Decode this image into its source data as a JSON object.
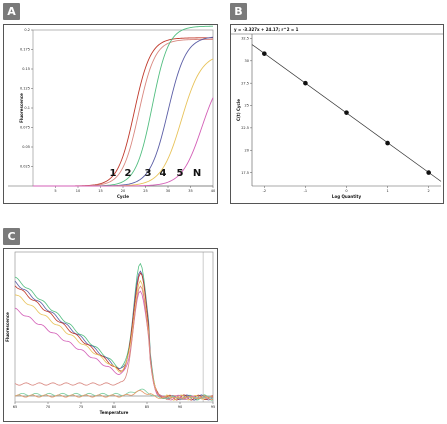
{
  "panels": {
    "a": {
      "label": "A"
    },
    "b": {
      "label": "B"
    },
    "c": {
      "label": "C"
    }
  },
  "chart_data": [
    {
      "id": "A",
      "type": "line",
      "xlabel": "Cycle",
      "ylabel": "Fluorescence",
      "xlim": [
        0,
        40
      ],
      "ylim": [
        0,
        0.2
      ],
      "xticks": [
        5,
        10,
        15,
        20,
        25,
        30,
        35,
        40
      ],
      "yticks": [
        0.025,
        0.05,
        0.075,
        0.1,
        0.125,
        0.15,
        0.175,
        0.2
      ],
      "curve_labels": [
        "1",
        "2",
        "3",
        "4",
        "5",
        "N"
      ],
      "series": [
        {
          "color": "#c0392b",
          "midpoint": 22.5,
          "plateau": 0.19,
          "steepness": 0.55
        },
        {
          "color": "#d98880",
          "midpoint": 23.5,
          "plateau": 0.188,
          "steepness": 0.55
        },
        {
          "color": "#52be80",
          "midpoint": 26.5,
          "plateau": 0.205,
          "steepness": 0.55
        },
        {
          "color": "#5b5ea6",
          "midpoint": 30.0,
          "plateau": 0.192,
          "steepness": 0.5
        },
        {
          "color": "#e8c35a",
          "midpoint": 33.0,
          "plateau": 0.17,
          "steepness": 0.45
        },
        {
          "color": "#d35fb7",
          "midpoint": 37.5,
          "plateau": 0.15,
          "steepness": 0.45
        }
      ]
    },
    {
      "id": "B",
      "type": "scatter",
      "equation": "y = -3.327x + 24.17; r^2 = 1",
      "xlabel": "Log Quantity",
      "ylabel": "C(t) Cycle",
      "xlim": [
        -2.3,
        2.3
      ],
      "ylim": [
        16,
        33
      ],
      "xticks": [
        -2,
        -1,
        0,
        1,
        2
      ],
      "yticks": [
        17.5,
        20,
        22.5,
        25,
        27.5,
        30,
        32.5
      ],
      "x": [
        -2,
        -1,
        0,
        1,
        2
      ],
      "y": [
        30.8,
        27.5,
        24.2,
        20.8,
        17.5
      ],
      "fit": {
        "slope": -3.327,
        "intercept": 24.17
      }
    },
    {
      "id": "C",
      "type": "line",
      "xlabel": "Temperature",
      "ylabel": "Fluorescence",
      "xlim": [
        65,
        95
      ],
      "ylim": [
        0,
        1
      ],
      "xticks": [
        65,
        70,
        75,
        80,
        85,
        90,
        95
      ],
      "series": [
        {
          "color": "#52be80",
          "start": 0.83,
          "slope_end": 0.22,
          "peak": 0.92
        },
        {
          "color": "#5b5ea6",
          "start": 0.8,
          "slope_end": 0.21,
          "peak": 0.88
        },
        {
          "color": "#c0392b",
          "start": 0.78,
          "slope_end": 0.2,
          "peak": 0.86
        },
        {
          "color": "#e8c35a",
          "start": 0.72,
          "slope_end": 0.2,
          "peak": 0.8
        },
        {
          "color": "#d35fb7",
          "start": 0.62,
          "slope_end": 0.18,
          "peak": 0.74
        },
        {
          "color": "#d98880",
          "start": 0.12,
          "slope_end": 0.12,
          "peak": 0.78
        },
        {
          "color": "#7dcea0",
          "start": 0.05,
          "slope_end": 0.05,
          "peak": 0.08
        },
        {
          "color": "#e59866",
          "start": 0.04,
          "slope_end": 0.04,
          "peak": 0.07
        }
      ]
    }
  ]
}
